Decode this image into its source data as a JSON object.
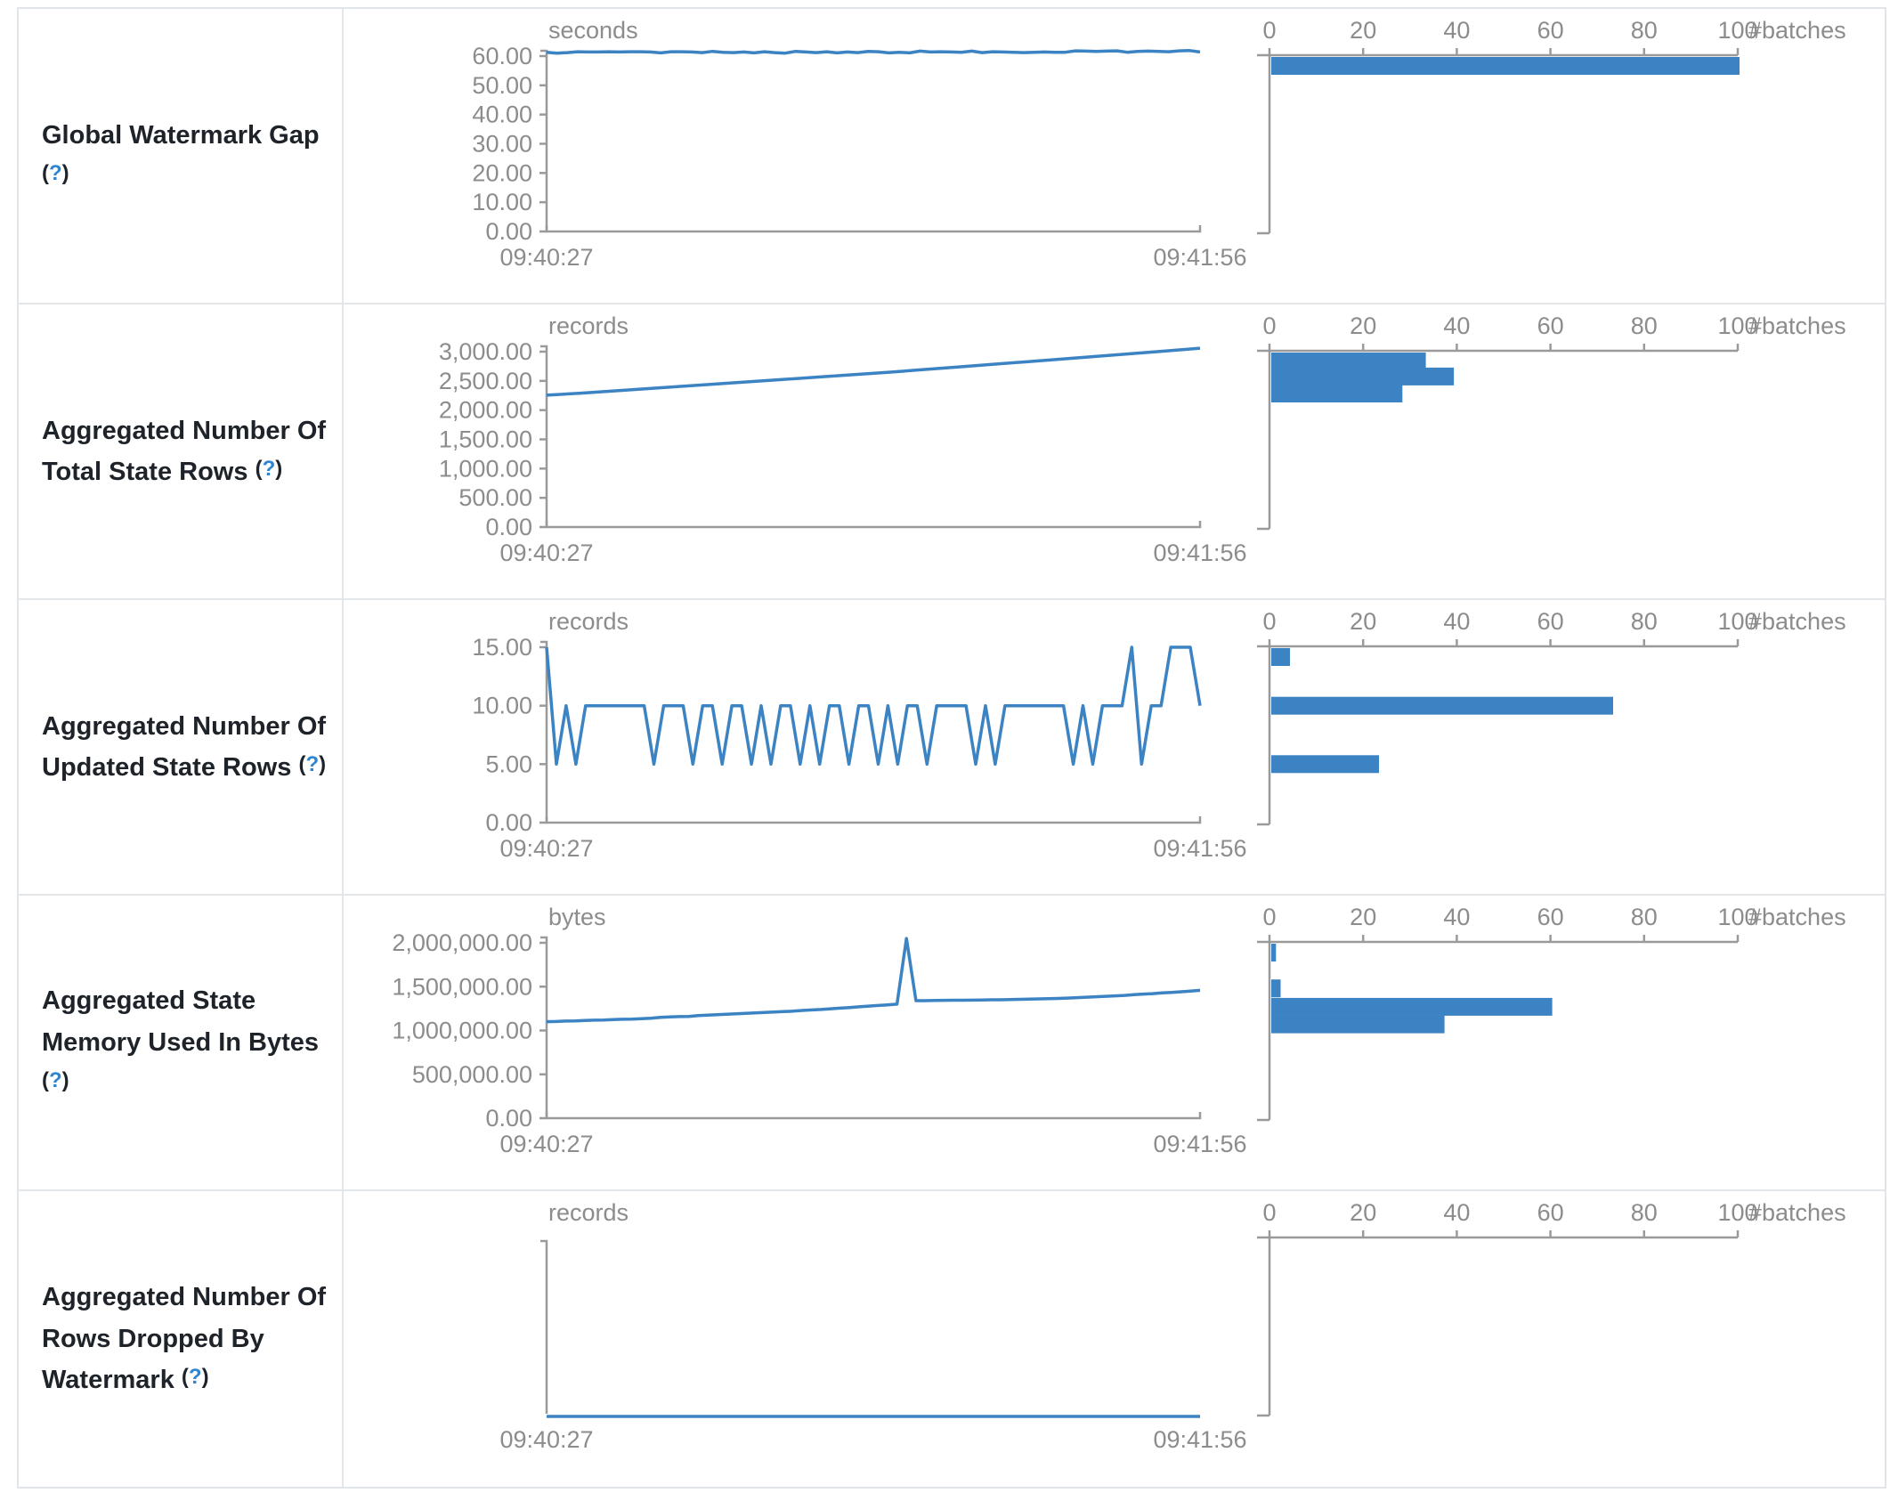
{
  "ui": {
    "help_open": "(",
    "help_q": "?",
    "help_close": ")"
  },
  "colors": {
    "line": "#3c83c4",
    "bar": "#3c83c4",
    "axis": "#9a9a9a",
    "tick_text": "#8c8c8c",
    "label_text": "#1d2329",
    "help_link": "#2e86d1",
    "border": "#e1e4e8"
  },
  "x_axis": {
    "start": "09:40:27",
    "end": "09:41:56"
  },
  "batches_axis": {
    "ticks": [
      0,
      20,
      40,
      60,
      80,
      100
    ],
    "label": "#batches",
    "max": 100
  },
  "chart_data": [
    {
      "title": "Global Watermark Gap",
      "unit": "seconds",
      "timeline": {
        "type": "line",
        "x_range": [
          "09:40:27",
          "09:41:56"
        ],
        "yticks": [
          0,
          10,
          20,
          30,
          40,
          50,
          60
        ],
        "ytop": 60,
        "values": [
          61.3,
          61.0,
          61.2,
          61.5,
          61.4,
          61.4,
          61.5,
          61.4,
          61.5,
          61.5,
          61.4,
          61.1,
          61.5,
          61.5,
          61.4,
          61.2,
          61.6,
          61.3,
          61.2,
          61.4,
          61.1,
          61.5,
          61.2,
          61.0,
          61.6,
          61.4,
          61.2,
          61.5,
          61.1,
          61.4,
          61.2,
          61.6,
          61.5,
          61.1,
          61.3,
          61.1,
          61.7,
          61.4,
          61.5,
          61.4,
          61.3,
          61.7,
          61.2,
          61.5,
          61.4,
          61.3,
          61.2,
          61.3,
          61.4,
          61.3,
          61.3,
          61.8,
          61.7,
          61.6,
          61.7,
          61.8,
          61.3,
          61.6,
          61.7,
          61.6,
          61.5,
          61.8,
          61.9,
          61.4
        ]
      },
      "histogram": {
        "type": "bar",
        "xlabel": "#batches",
        "xticks": [
          0,
          20,
          40,
          60,
          80,
          100
        ],
        "bars": [
          {
            "bin": 61.5,
            "count": 100
          }
        ]
      }
    },
    {
      "title": "Aggregated Number Of Total State Rows",
      "unit": "records",
      "timeline": {
        "type": "line",
        "x_range": [
          "09:40:27",
          "09:41:56"
        ],
        "yticks": [
          0,
          500,
          1000,
          1500,
          2000,
          2500,
          3000
        ],
        "ytop": 3000,
        "values": [
          2255,
          2290,
          2330,
          2370,
          2410,
          2450,
          2490,
          2530,
          2570,
          2610,
          2650,
          2695,
          2740,
          2785,
          2830,
          2875,
          2920,
          2965,
          3010,
          3060
        ]
      },
      "histogram": {
        "type": "bar",
        "xlabel": "#batches",
        "xticks": [
          0,
          20,
          40,
          60,
          80,
          100
        ],
        "bars": [
          {
            "bin": 2870,
            "count": 33
          },
          {
            "bin": 2575,
            "count": 39
          },
          {
            "bin": 2285,
            "count": 28
          }
        ]
      }
    },
    {
      "title": "Aggregated Number Of Updated State Rows",
      "unit": "records",
      "timeline": {
        "type": "line",
        "x_range": [
          "09:40:27",
          "09:41:56"
        ],
        "yticks": [
          0,
          5,
          10,
          15
        ],
        "ytop": 15,
        "values": [
          15,
          5,
          10,
          5,
          10,
          10,
          10,
          10,
          10,
          10,
          10,
          5,
          10,
          10,
          10,
          5,
          10,
          10,
          5,
          10,
          10,
          5,
          10,
          5,
          10,
          10,
          5,
          10,
          5,
          10,
          10,
          5,
          10,
          10,
          5,
          10,
          5,
          10,
          10,
          5,
          10,
          10,
          10,
          10,
          5,
          10,
          5,
          10,
          10,
          10,
          10,
          10,
          10,
          10,
          5,
          10,
          5,
          10,
          10,
          10,
          15,
          5,
          10,
          10,
          15,
          15,
          15,
          10
        ]
      },
      "histogram": {
        "type": "bar",
        "xlabel": "#batches",
        "xticks": [
          0,
          20,
          40,
          60,
          80,
          100
        ],
        "bars": [
          {
            "bin": 15,
            "count": 4
          },
          {
            "bin": 10,
            "count": 73
          },
          {
            "bin": 5,
            "count": 23
          }
        ]
      }
    },
    {
      "title": "Aggregated State Memory Used In Bytes",
      "unit": "bytes",
      "timeline": {
        "type": "line",
        "x_range": [
          "09:40:27",
          "09:41:56"
        ],
        "yticks": [
          0,
          500000,
          1000000,
          1500000,
          2000000
        ],
        "ytop": 2000000,
        "values": [
          1100000,
          1103000,
          1108000,
          1110000,
          1115000,
          1118000,
          1120000,
          1125000,
          1128000,
          1130000,
          1135000,
          1140000,
          1150000,
          1155000,
          1158000,
          1160000,
          1170000,
          1175000,
          1180000,
          1185000,
          1190000,
          1195000,
          1200000,
          1205000,
          1210000,
          1215000,
          1220000,
          1228000,
          1235000,
          1240000,
          1248000,
          1255000,
          1262000,
          1270000,
          1278000,
          1285000,
          1292000,
          1300000,
          2050000,
          1340000,
          1340000,
          1342000,
          1344000,
          1345000,
          1345000,
          1346000,
          1348000,
          1350000,
          1350000,
          1352000,
          1355000,
          1358000,
          1360000,
          1362000,
          1365000,
          1370000,
          1375000,
          1380000,
          1385000,
          1390000,
          1395000,
          1400000,
          1408000,
          1415000,
          1420000,
          1428000,
          1435000,
          1442000,
          1450000,
          1458000
        ]
      },
      "histogram": {
        "type": "bar",
        "xlabel": "#batches",
        "xticks": [
          0,
          20,
          40,
          60,
          80,
          100
        ],
        "bars": [
          {
            "bin": 2050000,
            "count": 1
          },
          {
            "bin": 1480000,
            "count": 2
          },
          {
            "bin": 1270000,
            "count": 60
          },
          {
            "bin": 1070000,
            "count": 37
          }
        ]
      }
    },
    {
      "title": "Aggregated Number Of Rows Dropped By Watermark",
      "unit": "records",
      "timeline": {
        "type": "line",
        "x_range": [
          "09:40:27",
          "09:41:56"
        ],
        "yticks": [],
        "ytop": null,
        "values": [
          0,
          0
        ]
      },
      "histogram": {
        "type": "bar",
        "xlabel": "#batches",
        "xticks": [
          0,
          20,
          40,
          60,
          80,
          100
        ],
        "bars": []
      }
    }
  ]
}
